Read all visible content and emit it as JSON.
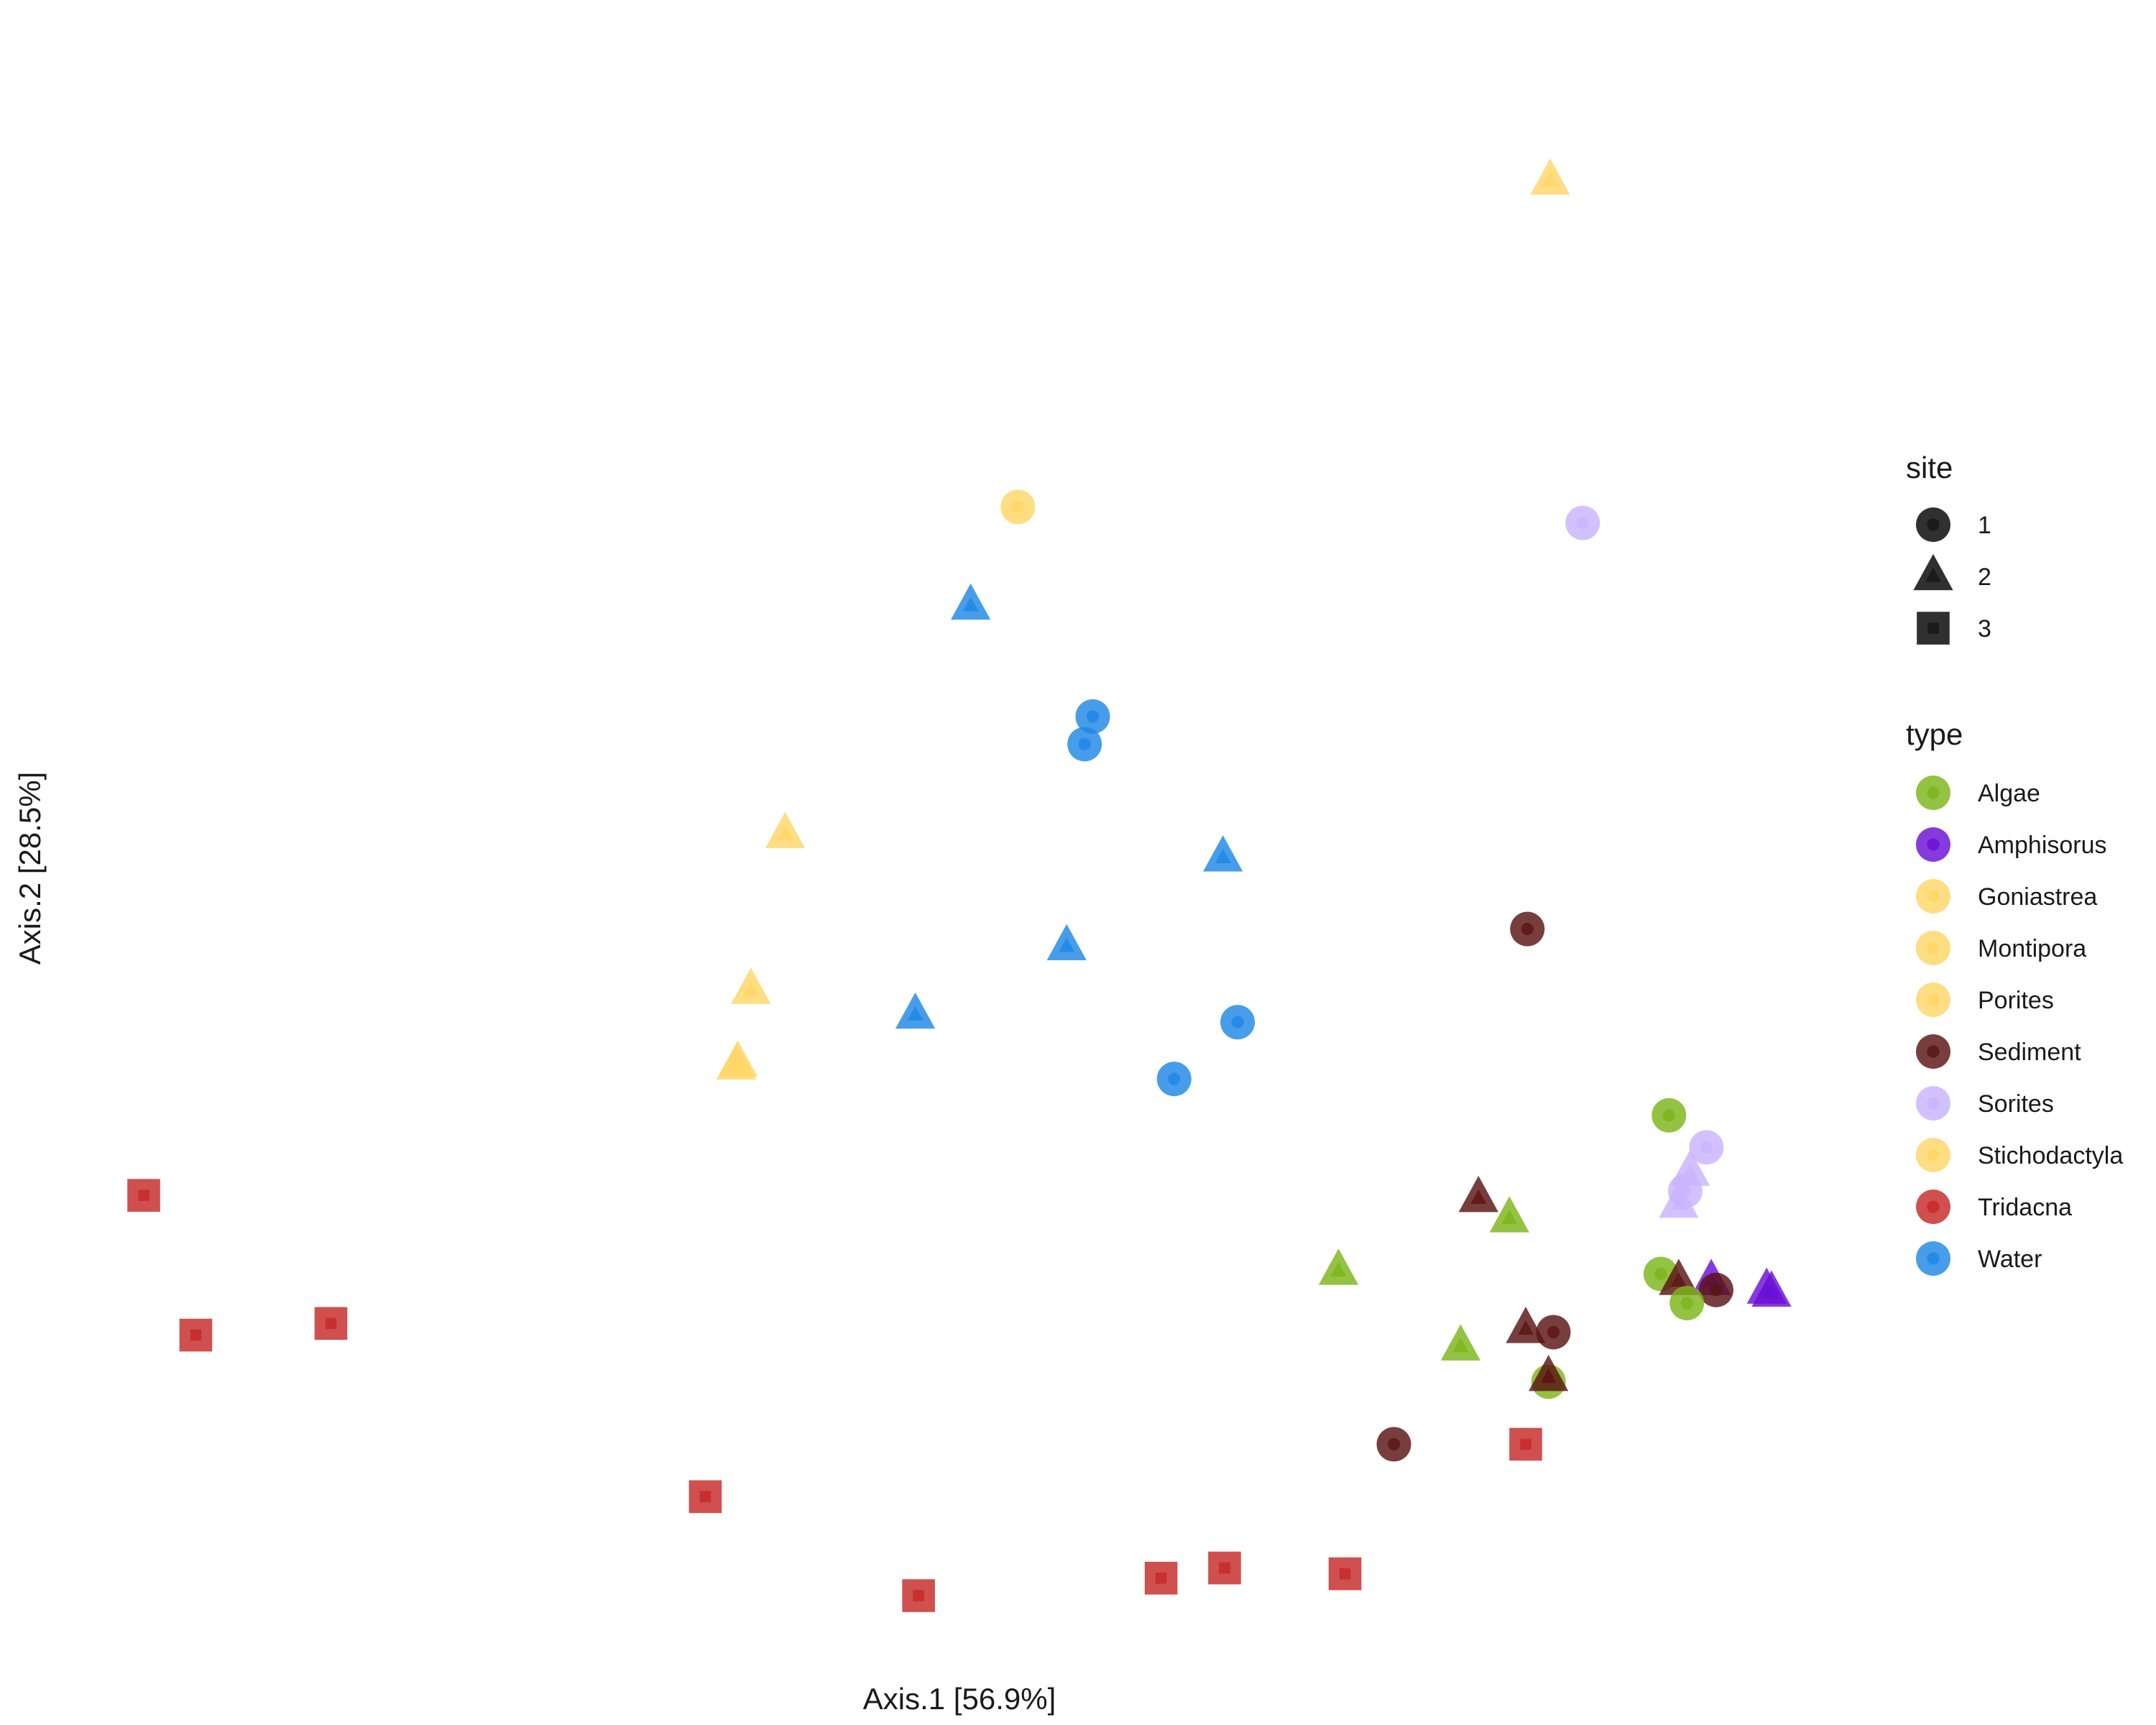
{
  "chart_data": {
    "type": "scatter",
    "xlabel": "Axis.1   [56.9%]",
    "ylabel": "Axis.2   [28.5%]",
    "xlim": [
      0,
      100
    ],
    "ylim": [
      0,
      100
    ],
    "grid": false,
    "legend_placement": "right",
    "shape_legend": {
      "title": "site",
      "entries": [
        {
          "label": "1",
          "shape": "circle"
        },
        {
          "label": "2",
          "shape": "triangle"
        },
        {
          "label": "3",
          "shape": "square"
        }
      ]
    },
    "color_legend": {
      "title": "type",
      "entries": [
        {
          "label": "Algae",
          "color": "#7cb518"
        },
        {
          "label": "Amphisorus",
          "color": "#6a0fd6"
        },
        {
          "label": "Goniastrea",
          "color": "#ffd666"
        },
        {
          "label": "Montipora",
          "color": "#ffd666"
        },
        {
          "label": "Porites",
          "color": "#ffd666"
        },
        {
          "label": "Sediment",
          "color": "#5a1414"
        },
        {
          "label": "Sorites",
          "color": "#c9b3ff"
        },
        {
          "label": "Stichodactyla",
          "color": "#ffd666"
        },
        {
          "label": "Tridacna",
          "color": "#c62828"
        },
        {
          "label": "Water",
          "color": "#1e88e5"
        }
      ]
    },
    "points": [
      {
        "x": 86.4,
        "y": 97.2,
        "type": "Stichodactyla",
        "site": "2"
      },
      {
        "x": 53.7,
        "y": 74.8,
        "type": "Goniastrea",
        "site": "1"
      },
      {
        "x": 88.4,
        "y": 73.7,
        "type": "Sorites",
        "site": "1"
      },
      {
        "x": 50.8,
        "y": 68.0,
        "type": "Water",
        "site": "2"
      },
      {
        "x": 58.3,
        "y": 60.4,
        "type": "Water",
        "site": "1"
      },
      {
        "x": 57.8,
        "y": 58.5,
        "type": "Water",
        "site": "1"
      },
      {
        "x": 39.4,
        "y": 52.3,
        "type": "Porites",
        "site": "2"
      },
      {
        "x": 66.3,
        "y": 50.7,
        "type": "Water",
        "site": "2"
      },
      {
        "x": 56.7,
        "y": 44.6,
        "type": "Water",
        "site": "2"
      },
      {
        "x": 37.3,
        "y": 41.6,
        "type": "Montipora",
        "site": "2"
      },
      {
        "x": 47.4,
        "y": 39.9,
        "type": "Water",
        "site": "2"
      },
      {
        "x": 67.2,
        "y": 39.4,
        "type": "Water",
        "site": "1"
      },
      {
        "x": 36.5,
        "y": 36.6,
        "type": "Montipora",
        "site": "2"
      },
      {
        "x": 36.4,
        "y": 36.4,
        "type": "Goniastrea",
        "site": "2"
      },
      {
        "x": 63.3,
        "y": 35.5,
        "type": "Water",
        "site": "1"
      },
      {
        "x": 85.0,
        "y": 45.8,
        "type": "Sediment",
        "site": "1"
      },
      {
        "x": 93.7,
        "y": 33.0,
        "type": "Algae",
        "site": "1"
      },
      {
        "x": 96.0,
        "y": 30.8,
        "type": "Sorites",
        "site": "1"
      },
      {
        "x": 95.0,
        "y": 29.1,
        "type": "Sorites",
        "site": "2"
      },
      {
        "x": 94.7,
        "y": 27.8,
        "type": "Sorites",
        "site": "1"
      },
      {
        "x": 94.3,
        "y": 26.9,
        "type": "Sorites",
        "site": "2"
      },
      {
        "x": 0.0,
        "y": 27.5,
        "type": "Tridacna",
        "site": "3"
      },
      {
        "x": 82.0,
        "y": 27.3,
        "type": "Sediment",
        "site": "2"
      },
      {
        "x": 83.9,
        "y": 25.9,
        "type": "Algae",
        "site": "2"
      },
      {
        "x": 73.4,
        "y": 22.3,
        "type": "Algae",
        "site": "2"
      },
      {
        "x": 93.2,
        "y": 22.1,
        "type": "Algae",
        "site": "1"
      },
      {
        "x": 94.3,
        "y": 21.6,
        "type": "Sediment",
        "site": "2"
      },
      {
        "x": 96.3,
        "y": 21.6,
        "type": "Amphisorus",
        "site": "2"
      },
      {
        "x": 96.6,
        "y": 21.0,
        "type": "Sediment",
        "site": "1"
      },
      {
        "x": 99.7,
        "y": 21.0,
        "type": "Amphisorus",
        "site": "2"
      },
      {
        "x": 100.0,
        "y": 20.8,
        "type": "Amphisorus",
        "site": "2"
      },
      {
        "x": 94.8,
        "y": 20.1,
        "type": "Algae",
        "site": "1"
      },
      {
        "x": 84.9,
        "y": 18.3,
        "type": "Sediment",
        "site": "2"
      },
      {
        "x": 86.6,
        "y": 18.1,
        "type": "Sediment",
        "site": "1"
      },
      {
        "x": 80.9,
        "y": 17.1,
        "type": "Algae",
        "site": "2"
      },
      {
        "x": 3.2,
        "y": 17.9,
        "type": "Tridacna",
        "site": "3"
      },
      {
        "x": 11.5,
        "y": 18.7,
        "type": "Tridacna",
        "site": "3"
      },
      {
        "x": 86.3,
        "y": 14.7,
        "type": "Algae",
        "site": "1"
      },
      {
        "x": 86.3,
        "y": 15.0,
        "type": "Sediment",
        "site": "2"
      },
      {
        "x": 76.8,
        "y": 10.4,
        "type": "Sediment",
        "site": "1"
      },
      {
        "x": 84.9,
        "y": 10.4,
        "type": "Tridacna",
        "site": "3"
      },
      {
        "x": 34.5,
        "y": 6.8,
        "type": "Tridacna",
        "site": "3"
      },
      {
        "x": 47.6,
        "y": 0.0,
        "type": "Tridacna",
        "site": "3"
      },
      {
        "x": 62.5,
        "y": 1.2,
        "type": "Tridacna",
        "site": "3"
      },
      {
        "x": 66.4,
        "y": 1.9,
        "type": "Tridacna",
        "site": "3"
      },
      {
        "x": 73.8,
        "y": 1.5,
        "type": "Tridacna",
        "site": "3"
      }
    ]
  }
}
